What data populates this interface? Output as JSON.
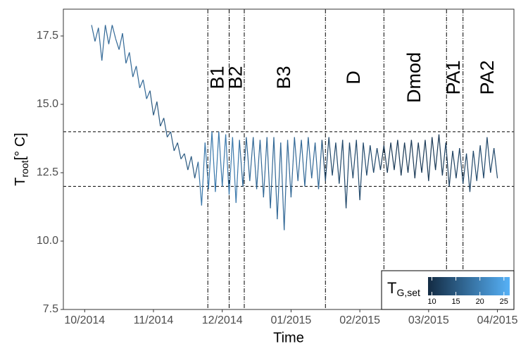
{
  "chart_data": {
    "type": "colored_line",
    "x_label": "Time",
    "y_label": [
      "T",
      "root",
      "[° C]"
    ],
    "x": [
      0.1,
      0.15,
      0.2,
      0.25,
      0.3,
      0.35,
      0.4,
      0.45,
      0.5,
      0.55,
      0.6,
      0.65,
      0.7,
      0.75,
      0.8,
      0.85,
      0.9,
      0.95,
      1.0,
      1.05,
      1.1,
      1.15,
      1.2,
      1.25,
      1.3,
      1.35,
      1.4,
      1.45,
      1.5,
      1.55,
      1.6,
      1.65,
      1.7,
      1.75,
      1.8,
      1.85,
      1.9,
      1.95,
      2.0,
      2.05,
      2.1,
      2.15,
      2.2,
      2.25,
      2.3,
      2.35,
      2.4,
      2.45,
      2.5,
      2.55,
      2.6,
      2.65,
      2.7,
      2.75,
      2.8,
      2.85,
      2.9,
      2.95,
      3.0,
      3.05,
      3.1,
      3.15,
      3.2,
      3.25,
      3.3,
      3.35,
      3.4,
      3.45,
      3.5,
      3.55,
      3.6,
      3.65,
      3.7,
      3.75,
      3.8,
      3.85,
      3.9,
      3.95,
      4.0,
      4.05,
      4.1,
      4.15,
      4.2,
      4.25,
      4.3,
      4.35,
      4.4,
      4.45,
      4.5,
      4.55,
      4.6,
      4.65,
      4.7,
      4.75,
      4.8,
      4.85,
      4.9,
      4.95,
      5.0,
      5.05,
      5.1,
      5.15,
      5.2,
      5.25,
      5.3,
      5.35,
      5.4,
      5.45,
      5.5,
      5.55,
      5.6,
      5.65,
      5.7,
      5.75,
      5.8,
      5.85,
      5.9,
      5.95,
      6.0
    ],
    "series": [
      {
        "name": "T_root",
        "values": [
          17.9,
          17.3,
          17.8,
          16.6,
          17.9,
          17.2,
          17.9,
          17.4,
          17.0,
          17.6,
          16.5,
          16.9,
          16.0,
          16.4,
          15.6,
          15.9,
          15.2,
          15.5,
          14.6,
          15.1,
          14.2,
          14.5,
          13.8,
          14.0,
          13.3,
          13.6,
          13.0,
          13.2,
          12.6,
          13.1,
          12.3,
          12.9,
          11.3,
          13.6,
          11.9,
          14.0,
          11.8,
          14.0,
          12.0,
          13.9,
          11.7,
          13.8,
          11.4,
          13.7,
          12.0,
          13.8,
          12.2,
          13.8,
          11.9,
          13.7,
          11.6,
          13.8,
          11.2,
          13.8,
          10.8,
          13.6,
          10.4,
          13.7,
          11.6,
          13.8,
          12.2,
          13.7,
          12.0,
          13.8,
          12.3,
          13.6,
          11.9,
          13.7,
          12.2,
          13.8,
          12.4,
          13.6,
          12.1,
          13.7,
          11.2,
          13.6,
          12.3,
          13.7,
          11.5,
          13.6,
          12.4,
          13.5,
          12.5,
          13.4,
          12.6,
          13.5,
          12.5,
          13.6,
          12.6,
          13.7,
          12.4,
          13.6,
          12.5,
          13.7,
          12.3,
          13.6,
          12.5,
          13.7,
          12.2,
          13.8,
          12.6,
          13.9,
          12.4,
          13.6,
          12.0,
          13.3,
          12.3,
          13.4,
          12.1,
          13.2,
          11.8,
          13.3,
          12.2,
          13.5,
          12.3,
          13.8,
          12.5,
          13.4,
          12.3
        ],
        "color_values": [
          17,
          17,
          17,
          17,
          17,
          17,
          17,
          17,
          17,
          17,
          17,
          17,
          17,
          17,
          17,
          17,
          17,
          17,
          15,
          15,
          15,
          15,
          15,
          15,
          15,
          15,
          15,
          15,
          15,
          15,
          15,
          15,
          19,
          19,
          19,
          19,
          19,
          19,
          19,
          19,
          19,
          19,
          19,
          19,
          17,
          17,
          17,
          17,
          17,
          17,
          17,
          17,
          17,
          17,
          17,
          17,
          17,
          17,
          17,
          17,
          17,
          17,
          17,
          17,
          17,
          17,
          17,
          17,
          13,
          13,
          13,
          13,
          13,
          13,
          13,
          13,
          13,
          13,
          13,
          13,
          13,
          13,
          13,
          13,
          13,
          11,
          11,
          11,
          11,
          11,
          11,
          11,
          11,
          11,
          11,
          11,
          11,
          11,
          11,
          11,
          11,
          11,
          11,
          12,
          12,
          12,
          12,
          12,
          13,
          13,
          13,
          13,
          13,
          13,
          13,
          13,
          13,
          13,
          13
        ]
      }
    ],
    "xlim": [
      -0.31,
      6.24
    ],
    "xticks": [
      {
        "value": 0,
        "label": "10/2014"
      },
      {
        "value": 1,
        "label": "11/2014"
      },
      {
        "value": 2,
        "label": "12/2014"
      },
      {
        "value": 3,
        "label": "01/2015"
      },
      {
        "value": 4,
        "label": "02/2015"
      },
      {
        "value": 5,
        "label": "03/2015"
      },
      {
        "value": 6,
        "label": "04/2015"
      }
    ],
    "ylim": [
      7.5,
      18.48
    ],
    "yticks": [
      {
        "value": 7.5,
        "label": "7.5"
      },
      {
        "value": 10,
        "label": "10.0"
      },
      {
        "value": 12.5,
        "label": "12.5"
      },
      {
        "value": 15,
        "label": "15.0"
      },
      {
        "value": 17.5,
        "label": "17.5"
      }
    ],
    "hlines": [
      12,
      14
    ],
    "phase_bounds": [
      1.79,
      2.1,
      2.32,
      3.5,
      4.35,
      5.26,
      5.5
    ],
    "phases": [
      "B1",
      "B2",
      "B3",
      "D",
      "Dmod",
      "PA1",
      "PA2"
    ],
    "legend_title": {
      "main": "T",
      "sub": "G,set"
    },
    "color_lim": [
      9.2,
      26.2
    ],
    "color_ticks": [
      10,
      15,
      20,
      25
    ],
    "color_low": "#132B43",
    "color_high": "#56B1F7"
  }
}
